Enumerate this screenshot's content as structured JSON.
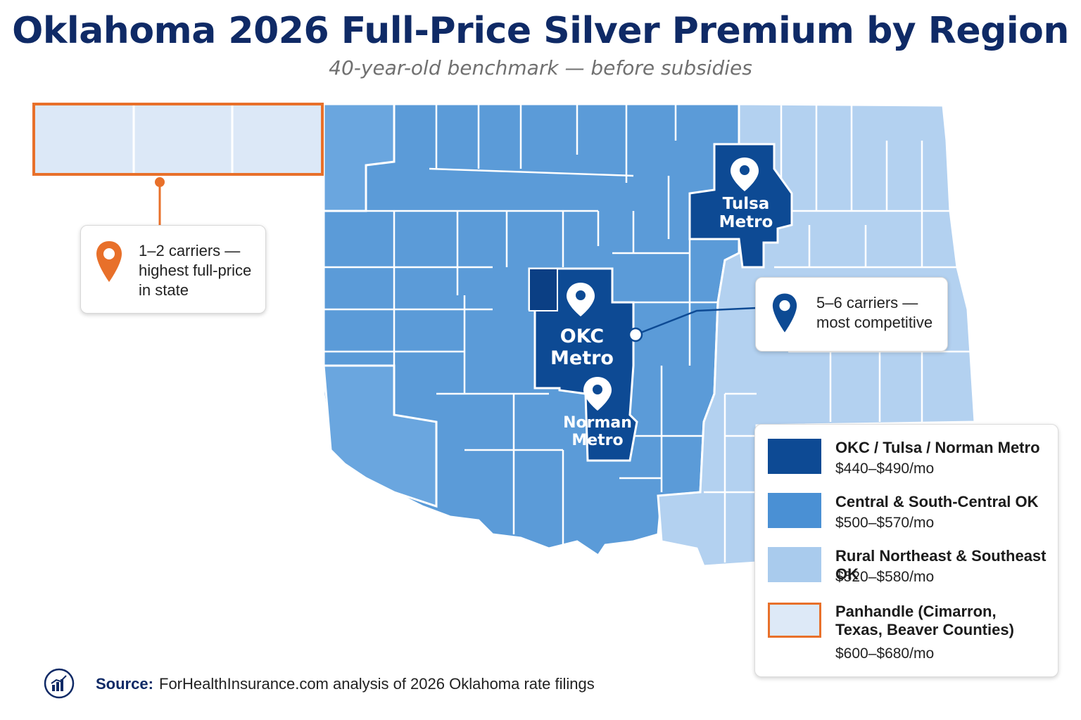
{
  "header": {
    "title": "Oklahoma 2026 Full-Price Silver Premium by Region",
    "subtitle": "40-year-old benchmark — before subsidies"
  },
  "regions": {
    "tulsa": {
      "line1": "Tulsa",
      "line2": "Metro"
    },
    "okc": {
      "line1": "OKC",
      "line2": "Metro"
    },
    "norman": {
      "line1": "Norman",
      "line2": "Metro"
    }
  },
  "callouts": {
    "panhandle": {
      "text": "1–2 carriers —\nhighest full-price\nin state"
    },
    "metro": {
      "text": "5–6 carriers —\nmost competitive"
    }
  },
  "legend": {
    "items": [
      {
        "label": "OKC / Tulsa / Norman Metro",
        "price": "$440–$490/mo",
        "color": "#0d4a94"
      },
      {
        "label": "Central & South-Central OK",
        "price": "$500–$570/mo",
        "color": "#4a90d4"
      },
      {
        "label": "Rural Northeast & Southeast OK",
        "price": "$520–$580/mo",
        "color": "#a9cbed"
      },
      {
        "label": "Panhandle (Cimarron, Texas, Beaver Counties)",
        "price": "$600–$680/mo",
        "color": "#dde9f7",
        "border": "#e8702a"
      }
    ]
  },
  "source": {
    "label": "Source:",
    "text": "ForHealthInsurance.com analysis of 2026 Oklahoma rate filings"
  },
  "colors": {
    "metro": "#0d4a94",
    "central": "#5b9bd8",
    "central_light": "#6aa6df",
    "rural": "#b3d1f0",
    "panhandle": "#dce8f7",
    "accent": "#e8702a",
    "title": "#0f2a66"
  }
}
